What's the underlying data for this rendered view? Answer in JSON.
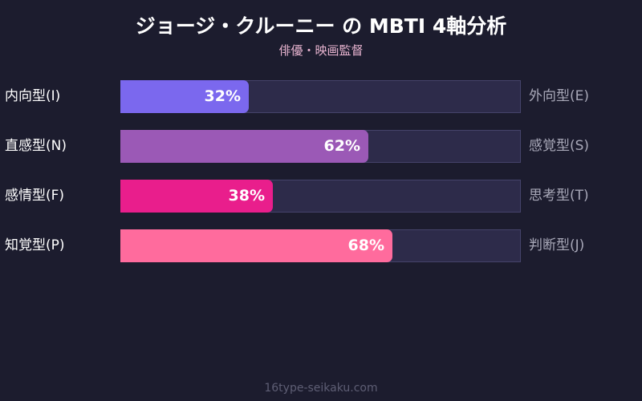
{
  "chart_data": {
    "type": "bar",
    "title": "ジョージ・クルーニー の MBTI 4軸分析",
    "subtitle": "俳優・映画監督",
    "xlim": [
      0,
      100
    ],
    "axes": [
      {
        "left": "内向型(I)",
        "right": "外向型(E)",
        "value": 32,
        "label": "32%",
        "color": "#7b68ee"
      },
      {
        "left": "直感型(N)",
        "right": "感覚型(S)",
        "value": 62,
        "label": "62%",
        "color": "#9b59b6"
      },
      {
        "left": "感情型(F)",
        "right": "思考型(T)",
        "value": 38,
        "label": "38%",
        "color": "#e91e8c"
      },
      {
        "left": "知覚型(P)",
        "right": "判断型(J)",
        "value": 68,
        "label": "68%",
        "color": "#ff6b9d"
      }
    ]
  },
  "footer": "16type-seikaku.com"
}
